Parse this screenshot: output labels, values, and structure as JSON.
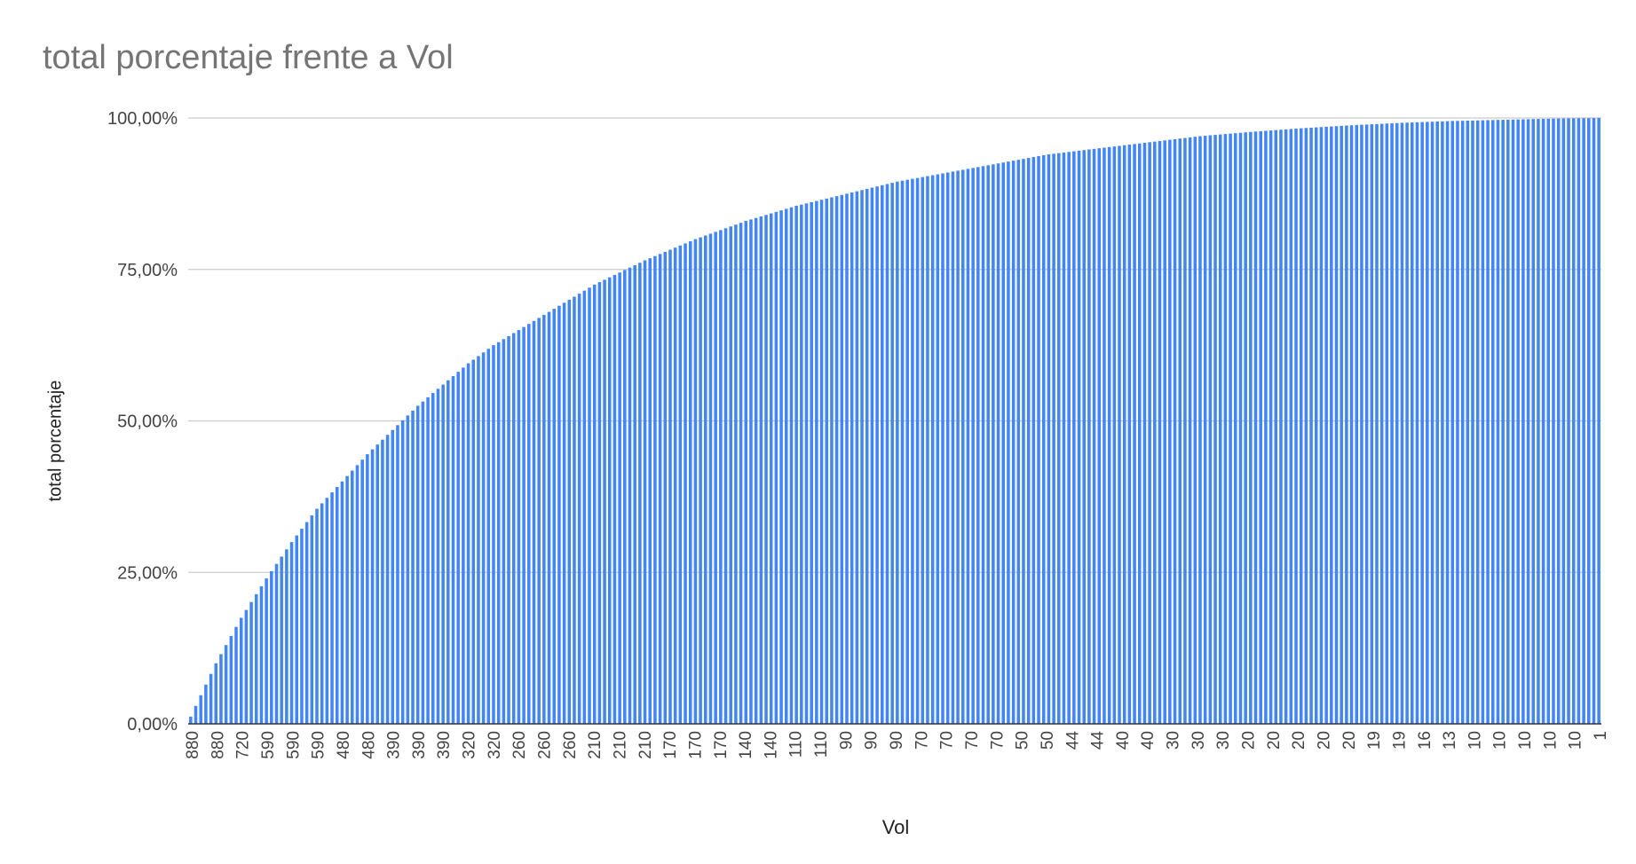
{
  "chart_data": {
    "type": "bar",
    "title": "total porcentaje frente a Vol",
    "xlabel": "Vol",
    "ylabel": "total porcentaje",
    "ylim": [
      0,
      100
    ],
    "y_ticks": [
      "0,00%",
      "25,00%",
      "50,00%",
      "75,00%",
      "100,00%"
    ],
    "y_tick_values": [
      0,
      25,
      50,
      75,
      100
    ],
    "bar_color": "#4285F4",
    "grid": true,
    "bar_count": 280,
    "cumulative_percentage_series": [
      {
        "index": 0,
        "value": 1.2
      },
      {
        "index": 5,
        "value": 10.0
      },
      {
        "index": 10,
        "value": 17.5
      },
      {
        "index": 15,
        "value": 24.0
      },
      {
        "index": 20,
        "value": 30.0
      },
      {
        "index": 25,
        "value": 35.5
      },
      {
        "index": 30,
        "value": 40.0
      },
      {
        "index": 35,
        "value": 44.5
      },
      {
        "index": 40,
        "value": 48.5
      },
      {
        "index": 45,
        "value": 52.5
      },
      {
        "index": 50,
        "value": 56.0
      },
      {
        "index": 55,
        "value": 59.5
      },
      {
        "index": 60,
        "value": 62.5
      },
      {
        "index": 65,
        "value": 65.0
      },
      {
        "index": 70,
        "value": 67.5
      },
      {
        "index": 75,
        "value": 70.0
      },
      {
        "index": 80,
        "value": 72.5
      },
      {
        "index": 85,
        "value": 74.5
      },
      {
        "index": 90,
        "value": 76.5
      },
      {
        "index": 100,
        "value": 80.0
      },
      {
        "index": 110,
        "value": 83.0
      },
      {
        "index": 120,
        "value": 85.5
      },
      {
        "index": 130,
        "value": 87.5
      },
      {
        "index": 140,
        "value": 89.5
      },
      {
        "index": 150,
        "value": 91.0
      },
      {
        "index": 160,
        "value": 92.5
      },
      {
        "index": 170,
        "value": 94.0
      },
      {
        "index": 180,
        "value": 95.0
      },
      {
        "index": 190,
        "value": 96.0
      },
      {
        "index": 200,
        "value": 97.0
      },
      {
        "index": 210,
        "value": 97.7
      },
      {
        "index": 220,
        "value": 98.3
      },
      {
        "index": 230,
        "value": 98.8
      },
      {
        "index": 240,
        "value": 99.2
      },
      {
        "index": 250,
        "value": 99.5
      },
      {
        "index": 260,
        "value": 99.7
      },
      {
        "index": 270,
        "value": 99.9
      },
      {
        "index": 279,
        "value": 100.0
      }
    ],
    "x_tick_labels": [
      "880",
      "880",
      "720",
      "590",
      "590",
      "590",
      "480",
      "480",
      "390",
      "390",
      "390",
      "320",
      "320",
      "260",
      "260",
      "260",
      "210",
      "210",
      "210",
      "170",
      "170",
      "170",
      "140",
      "140",
      "110",
      "110",
      "90",
      "90",
      "90",
      "70",
      "70",
      "70",
      "70",
      "50",
      "50",
      "44",
      "44",
      "40",
      "40",
      "30",
      "30",
      "30",
      "20",
      "20",
      "20",
      "20",
      "20",
      "19",
      "19",
      "16",
      "13",
      "10",
      "10",
      "10",
      "10",
      "10",
      "1"
    ]
  }
}
